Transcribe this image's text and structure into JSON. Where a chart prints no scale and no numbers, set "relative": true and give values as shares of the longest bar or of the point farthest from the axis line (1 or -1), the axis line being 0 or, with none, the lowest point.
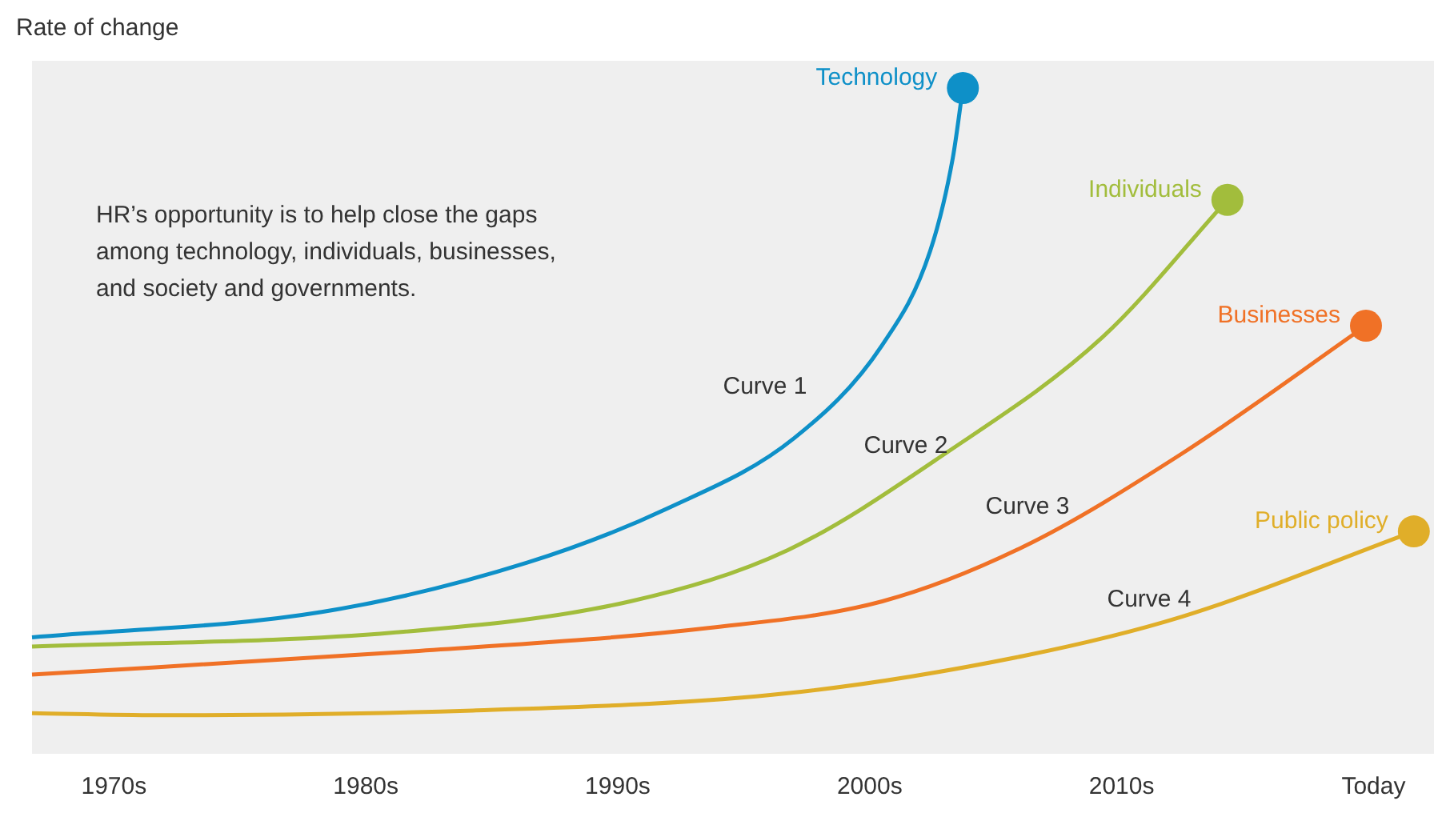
{
  "chart_data": {
    "type": "line",
    "relative": true,
    "ylabel": "Rate of change",
    "grid": false,
    "legend": false,
    "xlim": [
      1966.75,
      2022.4
    ],
    "xticks": [
      {
        "value": 1970,
        "label": "1970s"
      },
      {
        "value": 1980,
        "label": "1980s"
      },
      {
        "value": 1990,
        "label": "1990s"
      },
      {
        "value": 2000,
        "label": "2000s"
      },
      {
        "value": 2010,
        "label": "2010s"
      },
      {
        "value": 2020,
        "label": "Today"
      }
    ],
    "series": [
      {
        "name": "Technology",
        "color": "#0e90c8",
        "x": [
          1966.75,
          1978.25,
          1986.4,
          1992,
          1997,
          2000.5,
          2002.4,
          2003.3,
          2003.7
        ],
        "values": [
          0.175,
          0.213,
          0.287,
          0.369,
          0.474,
          0.614,
          0.755,
          0.895,
          1
        ]
      },
      {
        "name": "Individuals",
        "color": "#a2bd3c",
        "x": [
          1966.75,
          1981.1,
          1990.5,
          1996.75,
          2003,
          2009.25,
          2014.2
        ],
        "values": [
          0.161,
          0.182,
          0.229,
          0.306,
          0.451,
          0.626,
          0.832
        ]
      },
      {
        "name": "Businesses",
        "color": "#f07126",
        "x": [
          1966.75,
          1981.1,
          1993.6,
          2000.5,
          2006.1,
          2012.4,
          2019.7
        ],
        "values": [
          0.119,
          0.152,
          0.189,
          0.229,
          0.311,
          0.451,
          0.643
        ]
      },
      {
        "name": "Public policy",
        "color": "#e0ae29",
        "x": [
          1966.75,
          1971.75,
          1984.25,
          1996.75,
          2006.1,
          2012.4,
          2021.6
        ],
        "values": [
          0.061,
          0.058,
          0.065,
          0.091,
          0.147,
          0.206,
          0.334
        ]
      }
    ],
    "annotations": [
      "HR’s opportunity is to help close the gaps among technology, individuals, businesses, and society and governments.",
      "Curve 1",
      "Curve 2",
      "Curve 3",
      "Curve 4"
    ]
  }
}
